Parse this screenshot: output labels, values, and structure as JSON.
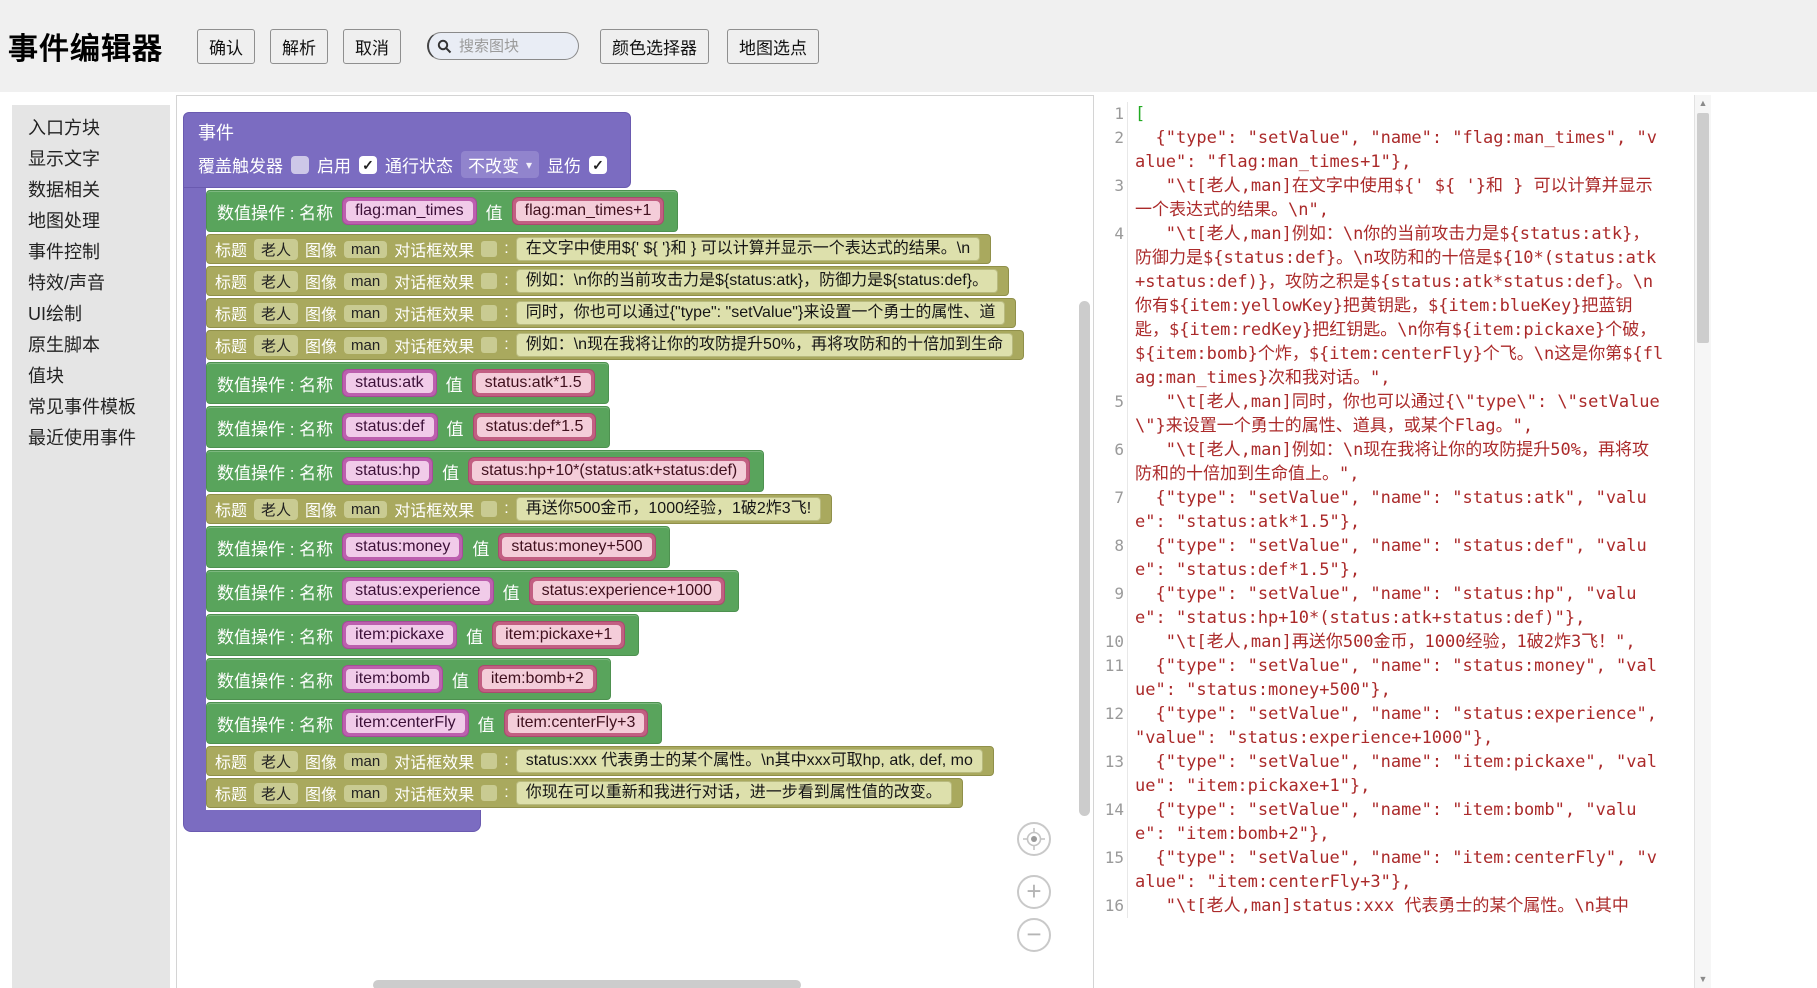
{
  "header": {
    "title": "事件编辑器",
    "confirm": "确认",
    "parse": "解析",
    "cancel": "取消",
    "search_placeholder": "搜索图块",
    "color_picker": "颜色选择器",
    "map_pick": "地图选点"
  },
  "sidebar": {
    "items": [
      "入口方块",
      "显示文字",
      "数据相关",
      "地图处理",
      "事件控制",
      "特效/声音",
      "UI绘制",
      "原生脚本",
      "值块",
      "常见事件模板",
      "最近使用事件"
    ]
  },
  "workspace": {
    "event_block": {
      "title": "事件",
      "trigger_label": "覆盖触发器",
      "trigger_checked": false,
      "enable_label": "启用",
      "enable_checked": true,
      "pass_label": "通行状态",
      "pass_value": "不改变",
      "damage_label": "显伤",
      "damage_checked": true
    },
    "labels": {
      "set_name": "数值操作 : 名称",
      "set_value": "值",
      "dlg_title": "标题",
      "dlg_image": "图像",
      "dlg_effect": "对话框效果",
      "colon": ":"
    },
    "rows": [
      {
        "kind": "set",
        "name": "flag:man_times",
        "value": "flag:man_times+1"
      },
      {
        "kind": "dlg",
        "title": "老人",
        "image": "man",
        "text": "在文字中使用${' ${ '}和 } 可以计算并显示一个表达式的结果。\\n"
      },
      {
        "kind": "dlg",
        "title": "老人",
        "image": "man",
        "text": "例如：\\n你的当前攻击力是${status:atk}，防御力是${status:def}。"
      },
      {
        "kind": "dlg",
        "title": "老人",
        "image": "man",
        "text": "同时，你也可以通过{\"type\": \"setValue\"}来设置一个勇士的属性、道"
      },
      {
        "kind": "dlg",
        "title": "老人",
        "image": "man",
        "text": "例如：\\n现在我将让你的攻防提升50%，再将攻防和的十倍加到生命"
      },
      {
        "kind": "set",
        "name": "status:atk",
        "value": "status:atk*1.5"
      },
      {
        "kind": "set",
        "name": "status:def",
        "value": "status:def*1.5"
      },
      {
        "kind": "set",
        "name": "status:hp",
        "value": "status:hp+10*(status:atk+status:def)"
      },
      {
        "kind": "dlg",
        "title": "老人",
        "image": "man",
        "text": "再送你500金币，1000经验，1破2炸3飞!"
      },
      {
        "kind": "set",
        "name": "status:money",
        "value": "status:money+500"
      },
      {
        "kind": "set",
        "name": "status:experience",
        "value": "status:experience+1000"
      },
      {
        "kind": "set",
        "name": "item:pickaxe",
        "value": "item:pickaxe+1"
      },
      {
        "kind": "set",
        "name": "item:bomb",
        "value": "item:bomb+2"
      },
      {
        "kind": "set",
        "name": "item:centerFly",
        "value": "item:centerFly+3"
      },
      {
        "kind": "dlg",
        "title": "老人",
        "image": "man",
        "text": "status:xxx 代表勇士的某个属性。\\n其中xxx可取hp, atk, def, mo"
      },
      {
        "kind": "dlg",
        "title": "老人",
        "image": "man",
        "text": "你现在可以重新和我进行对话，进一步看到属性值的改变。"
      }
    ]
  },
  "code": {
    "lines": [
      {
        "n": 1,
        "t": "["
      },
      {
        "n": 2,
        "t": "  {\"type\": \"setValue\", \"name\": \"flag:man_times\", \"value\": \"flag:man_times+1\"},"
      },
      {
        "n": 3,
        "t": "   \"\\t[老人,man]在文字中使用${' ${ '}和 } 可以计算并显示一个表达式的结果。\\n\","
      },
      {
        "n": 4,
        "t": "   \"\\t[老人,man]例如：\\n你的当前攻击力是${status:atk}，防御力是${status:def}。\\n攻防和的十倍是${10*(status:atk+status:def)}，攻防之积是${status:atk*status:def}。\\n你有${item:yellowKey}把黄钥匙，${item:blueKey}把蓝钥匙，${item:redKey}把红钥匙。\\n你有${item:pickaxe}个破，${item:bomb}个炸，${item:centerFly}个飞。\\n这是你第${flag:man_times}次和我对话。\","
      },
      {
        "n": 5,
        "t": "   \"\\t[老人,man]同时，你也可以通过{\\\"type\\\": \\\"setValue\\\"}来设置一个勇士的属性、道具，或某个Flag。\","
      },
      {
        "n": 6,
        "t": "   \"\\t[老人,man]例如：\\n现在我将让你的攻防提升50%，再将攻防和的十倍加到生命值上。\","
      },
      {
        "n": 7,
        "t": "  {\"type\": \"setValue\", \"name\": \"status:atk\", \"value\": \"status:atk*1.5\"},"
      },
      {
        "n": 8,
        "t": "  {\"type\": \"setValue\", \"name\": \"status:def\", \"value\": \"status:def*1.5\"},"
      },
      {
        "n": 9,
        "t": "  {\"type\": \"setValue\", \"name\": \"status:hp\", \"value\": \"status:hp+10*(status:atk+status:def)\"},"
      },
      {
        "n": 10,
        "t": "   \"\\t[老人,man]再送你500金币，1000经验，1破2炸3飞！\","
      },
      {
        "n": 11,
        "t": "  {\"type\": \"setValue\", \"name\": \"status:money\", \"value\": \"status:money+500\"},"
      },
      {
        "n": 12,
        "t": "  {\"type\": \"setValue\", \"name\": \"status:experience\", \"value\": \"status:experience+1000\"},"
      },
      {
        "n": 13,
        "t": "  {\"type\": \"setValue\", \"name\": \"item:pickaxe\", \"value\": \"item:pickaxe+1\"},"
      },
      {
        "n": 14,
        "t": "  {\"type\": \"setValue\", \"name\": \"item:bomb\", \"value\": \"item:bomb+2\"},"
      },
      {
        "n": 15,
        "t": "  {\"type\": \"setValue\", \"name\": \"item:centerFly\", \"value\": \"item:centerFly+3\"},"
      },
      {
        "n": 16,
        "t": "   \"\\t[老人,man]status:xxx 代表勇士的某个属性。\\n其中"
      }
    ]
  },
  "colors": {
    "event_block": "#7b6cc1",
    "set_block": "#59a45c",
    "dialog_block": "#a9a95e",
    "name_field_frame": "#bc5fae",
    "value_field_frame": "#c25f82",
    "code_text": "#ab2a2a",
    "code_bracket": "#22aa22",
    "line_number": "#9a9a9a"
  }
}
